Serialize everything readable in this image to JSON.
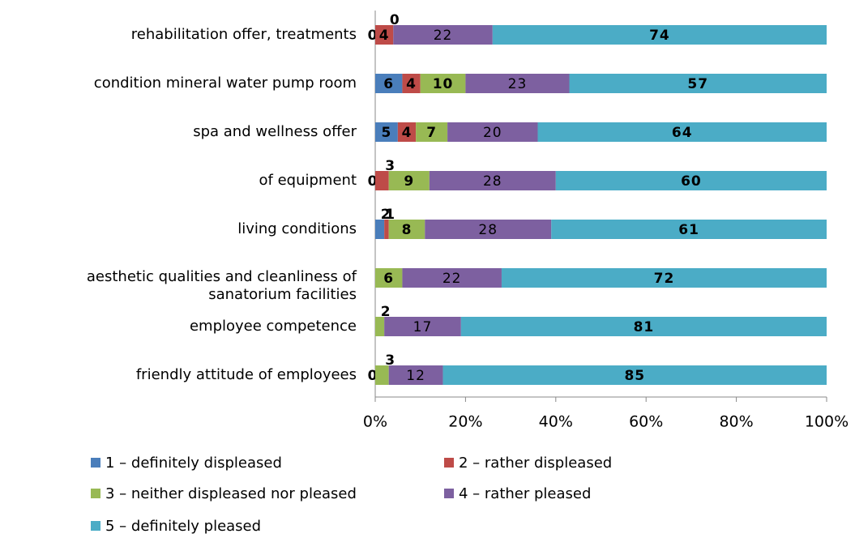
{
  "chart_data": {
    "type": "stacked-bar-horizontal-percent",
    "categories": [
      "rehabilitation offer, treatments",
      "condition mineral water pump room",
      "spa and wellness offer",
      "of equipment",
      "living conditions",
      "aesthetic qualities and cleanliness of sanatorium facilities",
      "employee competence",
      "friendly attitude of employees"
    ],
    "series": [
      {
        "name": "1 – definitely displeased",
        "color": "#4a7ebb",
        "values": [
          0,
          6,
          5,
          0,
          2,
          null,
          null,
          0
        ]
      },
      {
        "name": "2 – rather displeased",
        "color": "#be4b48",
        "values": [
          4,
          4,
          4,
          3,
          1,
          null,
          null,
          null
        ]
      },
      {
        "name": "3 – neither displeased nor pleased",
        "color": "#98b954",
        "values": [
          0,
          10,
          7,
          9,
          8,
          6,
          2,
          3
        ]
      },
      {
        "name": "4 – rather pleased",
        "color": "#7d60a0",
        "values": [
          22,
          23,
          20,
          28,
          28,
          22,
          17,
          12
        ]
      },
      {
        "name": "5 – definitely pleased",
        "color": "#4bacc6",
        "values": [
          74,
          57,
          64,
          60,
          61,
          72,
          81,
          85
        ]
      }
    ],
    "xlim": [
      0,
      100
    ],
    "xticks": [
      {
        "value": 0,
        "label": "0%"
      },
      {
        "value": 20,
        "label": "20%"
      },
      {
        "value": 40,
        "label": "40%"
      },
      {
        "value": 60,
        "label": "60%"
      },
      {
        "value": 80,
        "label": "80%"
      },
      {
        "value": 100,
        "label": "100%"
      }
    ],
    "legend": "bottom"
  }
}
